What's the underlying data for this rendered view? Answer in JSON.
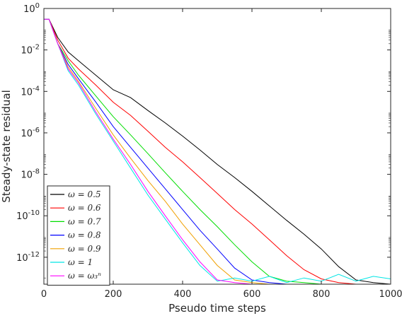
{
  "chart_data": {
    "type": "line",
    "title": "",
    "xlabel": "Pseudo time steps",
    "ylabel": "Steady-state residual",
    "xlim": [
      0,
      1000
    ],
    "ylim_log10": [
      -13.3,
      0
    ],
    "y_scale": "log",
    "grid": false,
    "legend_position": "bottom-left",
    "x_ticks": [
      0,
      200,
      400,
      600,
      800,
      1000
    ],
    "y_ticks": [
      {
        "exp": 0,
        "mantissa": "10",
        "sup": "0"
      },
      {
        "exp": -2,
        "mantissa": "10",
        "sup": "-2"
      },
      {
        "exp": -4,
        "mantissa": "10",
        "sup": "-4"
      },
      {
        "exp": -6,
        "mantissa": "10",
        "sup": "-6"
      },
      {
        "exp": -8,
        "mantissa": "10",
        "sup": "-8"
      },
      {
        "exp": -10,
        "mantissa": "10",
        "sup": "-10"
      },
      {
        "exp": -12,
        "mantissa": "10",
        "sup": "-12"
      }
    ],
    "series": [
      {
        "name": "ω = 0.5",
        "color": "#000000",
        "x": [
          0,
          15,
          40,
          70,
          100,
          150,
          200,
          250,
          300,
          350,
          400,
          450,
          500,
          550,
          600,
          650,
          700,
          750,
          800,
          850,
          900,
          950,
          1000
        ],
        "y": [
          0.3,
          0.3,
          0.04,
          0.008,
          0.003,
          0.0006,
          0.00012,
          5e-05,
          1.2e-05,
          3e-06,
          7e-07,
          1.5e-07,
          3e-08,
          7e-09,
          1.5e-09,
          3e-10,
          6e-11,
          1.3e-11,
          2.5e-12,
          3.5e-13,
          8e-14,
          6e-14,
          5e-14
        ]
      },
      {
        "name": "ω = 0.6",
        "color": "#ff0000",
        "x": [
          0,
          15,
          40,
          70,
          100,
          150,
          200,
          250,
          300,
          350,
          400,
          450,
          500,
          550,
          600,
          650,
          700,
          750,
          800,
          850,
          900,
          950,
          1000
        ],
        "y": [
          0.3,
          0.3,
          0.03,
          0.004,
          0.0012,
          0.0002,
          3e-05,
          7e-06,
          1.2e-06,
          2e-07,
          4e-08,
          7e-09,
          1.2e-09,
          2e-10,
          4e-11,
          7e-12,
          1.2e-12,
          2.5e-13,
          9e-14,
          6e-14,
          5e-14,
          5e-14,
          5e-14
        ]
      },
      {
        "name": "ω = 0.7",
        "color": "#00dd00",
        "x": [
          0,
          15,
          40,
          70,
          100,
          150,
          200,
          250,
          300,
          350,
          400,
          450,
          500,
          550,
          600,
          650,
          700,
          750,
          800,
          850,
          900,
          950,
          1000
        ],
        "y": [
          0.3,
          0.3,
          0.02,
          0.003,
          0.0006,
          6e-05,
          6e-06,
          8e-07,
          1e-07,
          1.2e-08,
          1.5e-09,
          2e-10,
          3e-11,
          4e-12,
          6e-13,
          1.2e-13,
          7e-14,
          6e-14,
          5e-14,
          5e-14,
          5e-14,
          5e-14,
          5e-14
        ]
      },
      {
        "name": "ω = 0.8",
        "color": "#0000ff",
        "x": [
          0,
          15,
          40,
          70,
          100,
          150,
          200,
          250,
          300,
          350,
          400,
          450,
          500,
          550,
          600,
          650,
          700,
          750,
          800,
          850,
          900,
          950,
          1000
        ],
        "y": [
          0.3,
          0.3,
          0.02,
          0.002,
          0.0004,
          3e-05,
          2e-06,
          2e-07,
          2e-08,
          2e-09,
          2e-10,
          2e-11,
          2.5e-12,
          3e-13,
          8e-14,
          6e-14,
          5e-14,
          5e-14,
          5e-14,
          5e-14,
          5e-14,
          5e-14,
          5e-14
        ]
      },
      {
        "name": "ω = 0.9",
        "color": "#f0a000",
        "x": [
          0,
          15,
          40,
          70,
          100,
          150,
          200,
          250,
          300,
          350,
          400,
          450,
          500,
          550,
          600,
          650,
          700,
          750,
          800,
          850,
          900,
          950,
          1000
        ],
        "y": [
          0.3,
          0.3,
          0.02,
          0.0015,
          0.0003,
          1.5e-05,
          8e-07,
          6e-08,
          5e-09,
          5e-10,
          4e-11,
          4e-12,
          4e-13,
          8e-14,
          6e-14,
          5e-14,
          5e-14,
          5e-14,
          5e-14,
          5e-14,
          5e-14,
          5e-14,
          5e-14
        ]
      },
      {
        "name": "ω = 1",
        "color": "#00e5e5",
        "x": [
          0,
          15,
          40,
          70,
          100,
          150,
          200,
          250,
          300,
          350,
          400,
          450,
          500,
          550,
          600,
          650,
          700,
          750,
          800,
          850,
          900,
          950,
          1000
        ],
        "y": [
          0.3,
          0.3,
          0.02,
          0.001,
          0.0002,
          8e-06,
          4e-07,
          2e-08,
          1e-09,
          7e-11,
          5e-12,
          4e-13,
          7e-14,
          1e-13,
          7e-14,
          1.2e-13,
          6e-14,
          1e-13,
          7e-14,
          1.5e-13,
          7e-14,
          1.2e-13,
          9e-14
        ]
      },
      {
        "name": "ω = ω₃ⁿ",
        "color": "#ff00ff",
        "x": [
          0,
          15,
          40,
          70,
          100,
          150,
          200,
          250,
          300,
          350,
          400,
          450,
          500,
          550,
          600,
          650,
          700,
          750,
          800,
          850,
          900,
          950,
          1000
        ],
        "y": [
          0.3,
          0.3,
          0.02,
          0.0012,
          0.00025,
          1e-05,
          5e-07,
          3e-08,
          1.5e-09,
          1e-10,
          7e-12,
          6e-13,
          8e-14,
          6e-14,
          5e-14,
          5e-14,
          5e-14,
          5e-14,
          5e-14,
          5e-14,
          5e-14,
          5e-14,
          5e-14
        ]
      }
    ]
  }
}
